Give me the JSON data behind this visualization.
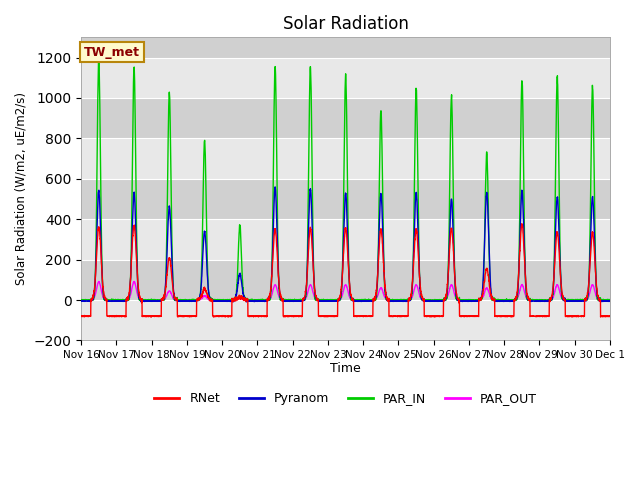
{
  "title": "Solar Radiation",
  "ylabel": "Solar Radiation (W/m2, uE/m2/s)",
  "xlabel": "Time",
  "ylim": [
    -200,
    1300
  ],
  "yticks": [
    -200,
    0,
    200,
    400,
    600,
    800,
    1000,
    1200
  ],
  "annotation": "TW_met",
  "annotation_color": "#8B0000",
  "annotation_bg": "#FFFACD",
  "annotation_border": "#B8860B",
  "colors": {
    "RNet": "#FF0000",
    "Pyranom": "#0000CC",
    "PAR_IN": "#00CC00",
    "PAR_OUT": "#FF00FF"
  },
  "bg_light": "#E8E8E8",
  "bg_dark": "#D0D0D0",
  "grid_color": "#FFFFFF",
  "x_labels": [
    "Nov 16",
    "Nov 17",
    "Nov 18",
    "Nov 19",
    "Nov 20",
    "Nov 21",
    "Nov 22",
    "Nov 23",
    "Nov 24",
    "Nov 25",
    "Nov 26",
    "Nov 27",
    "Nov 28",
    "Nov 29",
    "Nov 30",
    "Dec 1"
  ],
  "day_peaks_PAR_IN": [
    1190,
    1150,
    1025,
    790,
    370,
    1155,
    1155,
    1110,
    940,
    1050,
    1005,
    730,
    1090,
    1100,
    1060
  ],
  "day_peaks_Pyranom": [
    540,
    530,
    465,
    340,
    130,
    555,
    550,
    530,
    525,
    530,
    500,
    530,
    540,
    510,
    510
  ],
  "day_peaks_RNet": [
    360,
    370,
    210,
    55,
    15,
    350,
    355,
    355,
    350,
    350,
    355,
    155,
    375,
    335,
    335
  ],
  "day_peaks_PAR_OUT": [
    90,
    90,
    45,
    20,
    10,
    75,
    75,
    75,
    60,
    75,
    75,
    60,
    75,
    75,
    75
  ],
  "night_RNet": -80,
  "night_Pyranom": -5,
  "night_PAR_IN": 0,
  "night_PAR_OUT": 0,
  "dawn_hour": 6.5,
  "dusk_hour": 17.5,
  "pts_per_day": 240
}
